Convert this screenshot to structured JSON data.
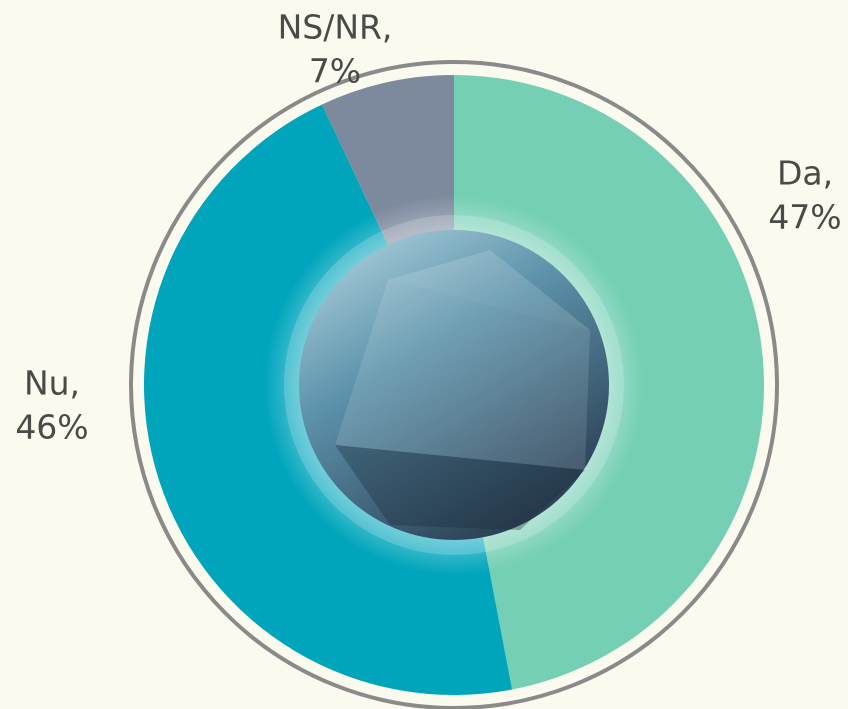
{
  "chart_data": {
    "type": "pie",
    "categories": [
      "Da,",
      "Nu,",
      "NS/NR,"
    ],
    "values": [
      47,
      46,
      7
    ],
    "value_labels": [
      "47%",
      "46%",
      "7%"
    ],
    "colors": [
      "#74cfb4",
      "#00a5bc",
      "#7d8a9e"
    ]
  }
}
